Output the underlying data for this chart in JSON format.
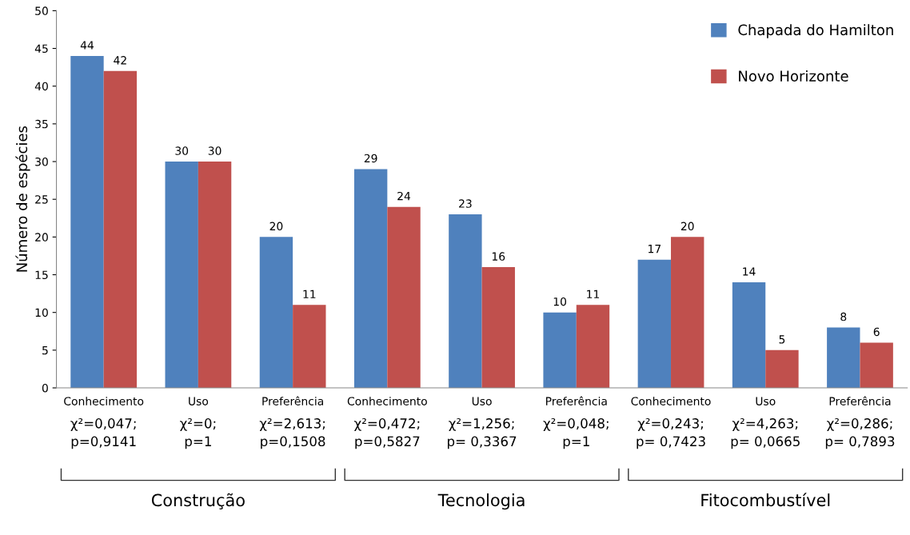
{
  "chart_data": {
    "type": "bar",
    "ylabel": "Número de espécies",
    "categories": [
      "Conhecimento",
      "Uso",
      "Preferência",
      "Conhecimento",
      "Uso",
      "Preferência",
      "Conhecimento",
      "Uso",
      "Preferência"
    ],
    "series": [
      {
        "name": "Chapada do Hamilton",
        "color": "#4f81bd",
        "values": [
          44,
          30,
          20,
          29,
          23,
          10,
          17,
          14,
          8
        ]
      },
      {
        "name": "Novo Horizonte",
        "color": "#c0504d",
        "values": [
          42,
          30,
          11,
          24,
          16,
          11,
          20,
          5,
          6
        ]
      }
    ],
    "ylim": [
      0,
      50
    ],
    "yticks": [
      0,
      5,
      10,
      15,
      20,
      25,
      30,
      35,
      40,
      45,
      50
    ],
    "data_labels": true,
    "grid": false,
    "legend": "top right",
    "annotations": [
      "χ²=0,047;\np=0,9141",
      "χ²=0;\np=1",
      "χ²=2,613;\np=0,1508",
      "χ²=0,472;\np=0,5827",
      "χ²=1,256;\np= 0,3367",
      "χ²=0,048;\np=1",
      "χ²=0,243;\np= 0,7423",
      "χ²=4,263;\np= 0,0665",
      "χ²=0,286;\np= 0,7893",
      "Construção",
      "Tecnologia",
      "Fitocombustível"
    ]
  }
}
